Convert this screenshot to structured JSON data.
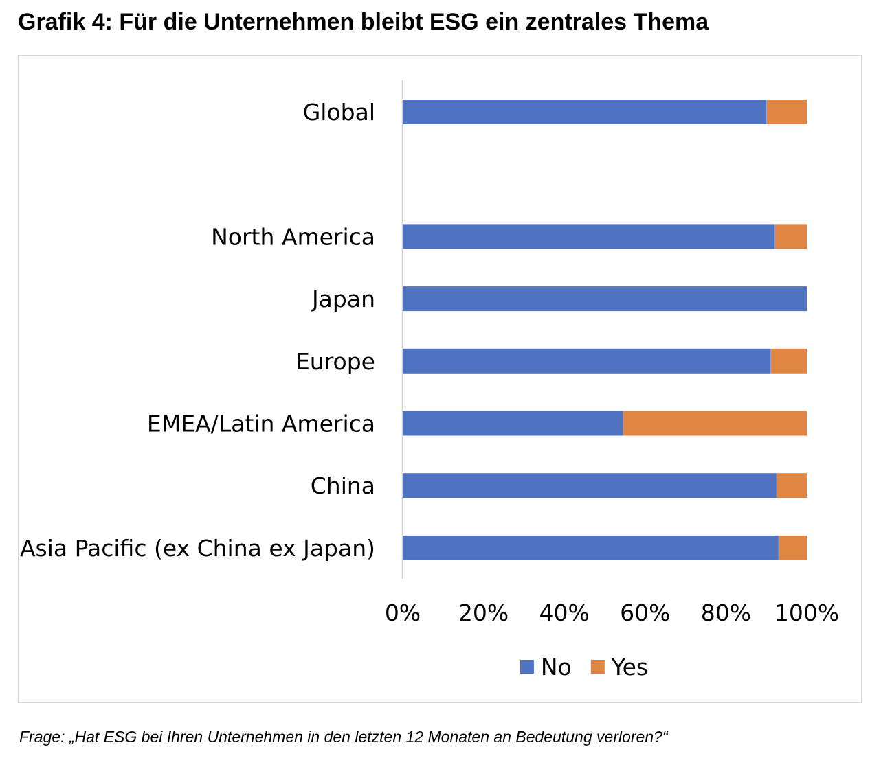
{
  "title": "Grafik 4: Für die Unternehmen bleibt ESG ein zentrales Thema",
  "footnote": "Frage: „Hat ESG bei Ihren Unternehmen in den letzten 12 Monaten an Bedeutung verloren?“",
  "colors": {
    "no": "#4f73c1",
    "yes": "#e08645",
    "axis": "#d0d0d0",
    "frame": "#d9d9d9"
  },
  "chart_data": {
    "type": "bar",
    "orientation": "horizontal",
    "stacked": "100%",
    "categories": [
      "Global",
      "",
      "North America",
      "Japan",
      "Europe",
      "EMEA/Latin America",
      "China",
      "Asia Pacific (ex China ex Japan)"
    ],
    "series": [
      {
        "name": "No",
        "color": "#4f73c1",
        "values": [
          90,
          null,
          92,
          100,
          91,
          54.5,
          92.5,
          93
        ]
      },
      {
        "name": "Yes",
        "color": "#e08645",
        "values": [
          10,
          null,
          8,
          0,
          9,
          45.5,
          7.5,
          7
        ]
      }
    ],
    "x_ticks": [
      "0%",
      "20%",
      "40%",
      "60%",
      "80%",
      "100%"
    ],
    "xlim": [
      0,
      100
    ],
    "xlabel": "",
    "ylabel": "",
    "grid": false,
    "legend": {
      "position": "bottom",
      "entries": [
        "No",
        "Yes"
      ]
    }
  }
}
